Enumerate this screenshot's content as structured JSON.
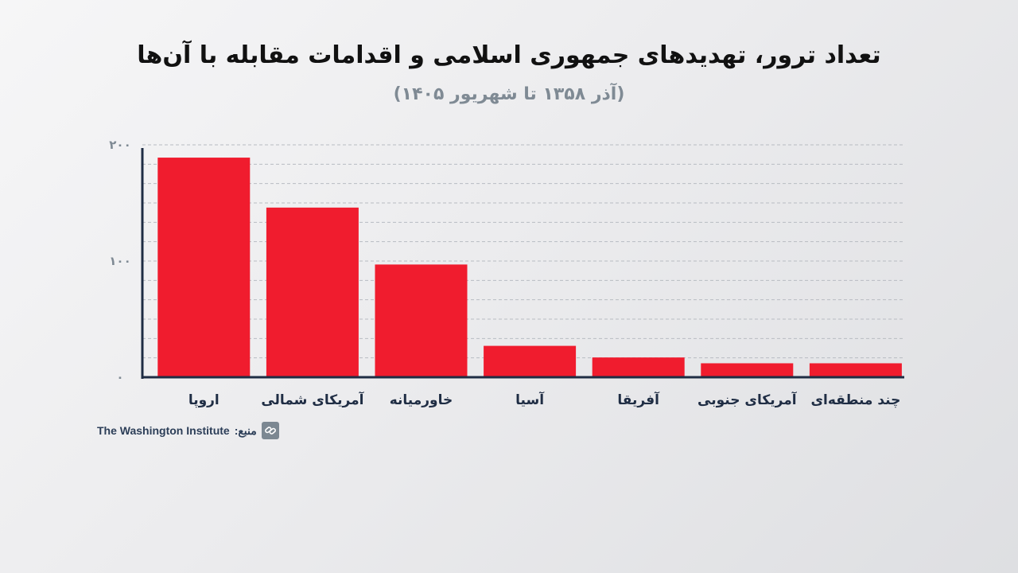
{
  "title": "تعداد ترور، تهدیدهای جمهوری اسلامی  و اقدامات مقابله با آن‌ها",
  "subtitle": "(آذر ۱۳۵۸ تا شهریور ۱۴۰۵)",
  "source": {
    "label": "منبع:",
    "name": "The Washington Institute",
    "icon": "link-icon"
  },
  "chart_data": {
    "type": "bar",
    "categories": [
      "اروپا",
      "آمریکای شمالی",
      "خاورمیانه",
      "آسیا",
      "آفریقا",
      "آمریکای جنوبی",
      "چند منطقه‌ای"
    ],
    "values": [
      189,
      146,
      97,
      27,
      17,
      12,
      12
    ],
    "ylim": [
      0,
      200
    ],
    "yticks": [
      0,
      100,
      200
    ],
    "ytick_labels": [
      "۰",
      "۱۰۰",
      "۲۰۰"
    ],
    "bar_color": "#f01c2e",
    "grid": true,
    "grid_style": "dashed",
    "xlabel": "",
    "ylabel": ""
  }
}
